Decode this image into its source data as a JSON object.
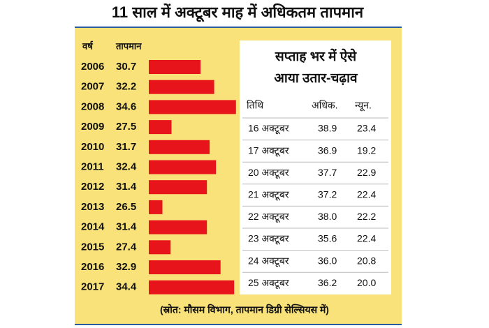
{
  "title": "11 साल में अक्टूबर माह में अधिकतम तापमान",
  "chart_data": {
    "type": "bar",
    "orientation": "horizontal",
    "category_header": "वर्ष",
    "value_header": "तापमान",
    "categories": [
      "2006",
      "2007",
      "2008",
      "2009",
      "2010",
      "2011",
      "2012",
      "2013",
      "2014",
      "2015",
      "2016",
      "2017"
    ],
    "values": [
      30.7,
      32.2,
      34.6,
      27.5,
      31.7,
      32.4,
      31.4,
      26.5,
      31.4,
      27.4,
      32.9,
      34.4
    ],
    "color": "#e8141b",
    "xlim": [
      25,
      35
    ]
  },
  "table": {
    "title": [
      "सप्ताह भर में ऐसे",
      "आया उतार-चढ़ाव"
    ],
    "columns": [
      "तिथि",
      "अधिक.",
      "न्यून."
    ],
    "rows": [
      [
        "16 अक्टूबर",
        "38.9",
        "23.4"
      ],
      [
        "17 अक्टूबर",
        "36.9",
        "19.2"
      ],
      [
        "20 अक्टूबर",
        "37.7",
        "22.9"
      ],
      [
        "21 अक्टूबर",
        "37.2",
        "22.4"
      ],
      [
        "22 अक्टूबर",
        "38.0",
        "22.2"
      ],
      [
        "23 अक्टूबर",
        "35.6",
        "22.4"
      ],
      [
        "24 अक्टूबर",
        "36.0",
        "20.8"
      ],
      [
        "25 अक्टूबर",
        "36.2",
        "20.0"
      ]
    ]
  },
  "source": "(स्रोत: मौसम विभाग, तापमान डिग्री सेल्सियस में)"
}
